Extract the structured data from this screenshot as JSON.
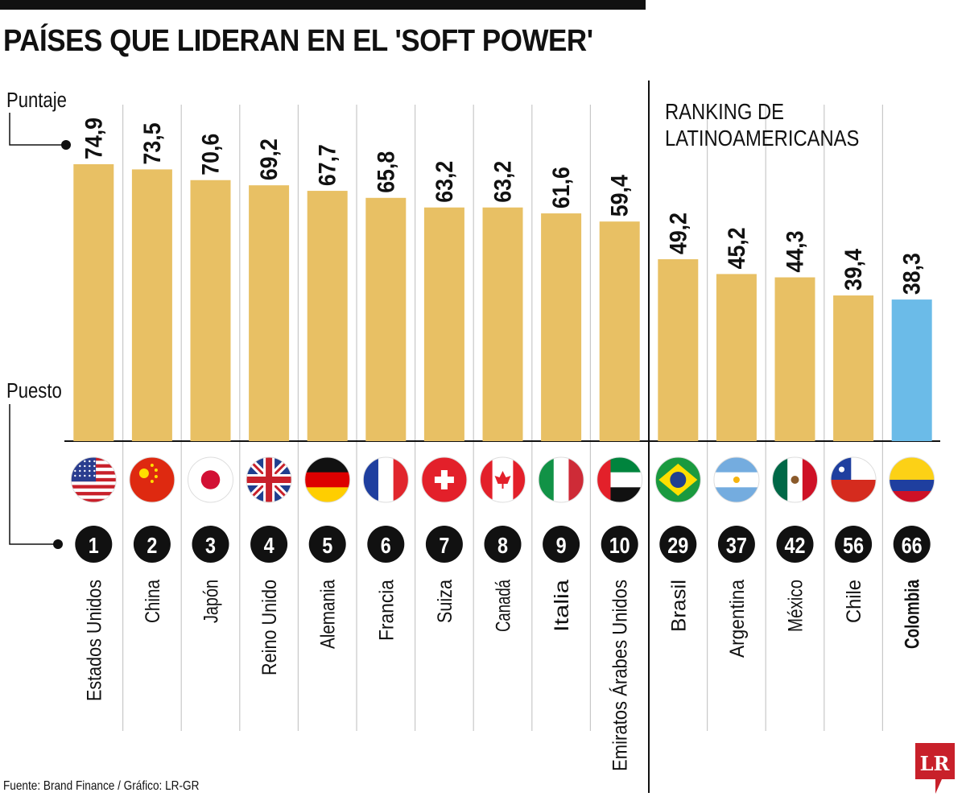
{
  "title": "PAÍSES QUE LIDERAN EN EL 'SOFT POWER'",
  "source": "Fuente: Brand Finance / Gráfico: LR-GR",
  "logo_text": "LR",
  "colors": {
    "bar": "#e8c064",
    "highlight_bar": "#6bbbe8",
    "logo": "#c8202a"
  },
  "chart_data": {
    "type": "bar",
    "title": "PAÍSES QUE LIDERAN EN EL 'SOFT POWER'",
    "ylabel": "Puntaje",
    "rank_label": "Puesto",
    "group_label": "RANKING DE LATINOAMERICANAS",
    "group_label_lines": [
      "RANKING DE",
      "LATINOAMERICANAS"
    ],
    "ylim": [
      0,
      80
    ],
    "grid": false,
    "categories": [
      "Estados Unidos",
      "China",
      "Japón",
      "Reino Unido",
      "Alemania",
      "Francia",
      "Suiza",
      "Canadá",
      "Italia",
      "Emiratos Árabes Unidos",
      "Brasil",
      "Argentina",
      "México",
      "Chile",
      "Colombia"
    ],
    "values": [
      74.9,
      73.5,
      70.6,
      69.2,
      67.7,
      65.8,
      63.2,
      63.2,
      61.6,
      59.4,
      49.2,
      45.2,
      44.3,
      39.4,
      38.3
    ],
    "value_labels": [
      "74,9",
      "73,5",
      "70,6",
      "69,2",
      "67,7",
      "65,8",
      "63,2",
      "63,2",
      "61,6",
      "59,4",
      "49,2",
      "45,2",
      "44,3",
      "39,4",
      "38,3"
    ],
    "ranks": [
      "1",
      "2",
      "3",
      "4",
      "5",
      "6",
      "7",
      "8",
      "9",
      "10",
      "29",
      "37",
      "42",
      "56",
      "66"
    ],
    "flags": [
      "us",
      "cn",
      "jp",
      "gb",
      "de",
      "fr",
      "ch",
      "ca",
      "it",
      "ae",
      "br",
      "ar",
      "mx",
      "cl",
      "co"
    ],
    "highlight": "Colombia"
  }
}
